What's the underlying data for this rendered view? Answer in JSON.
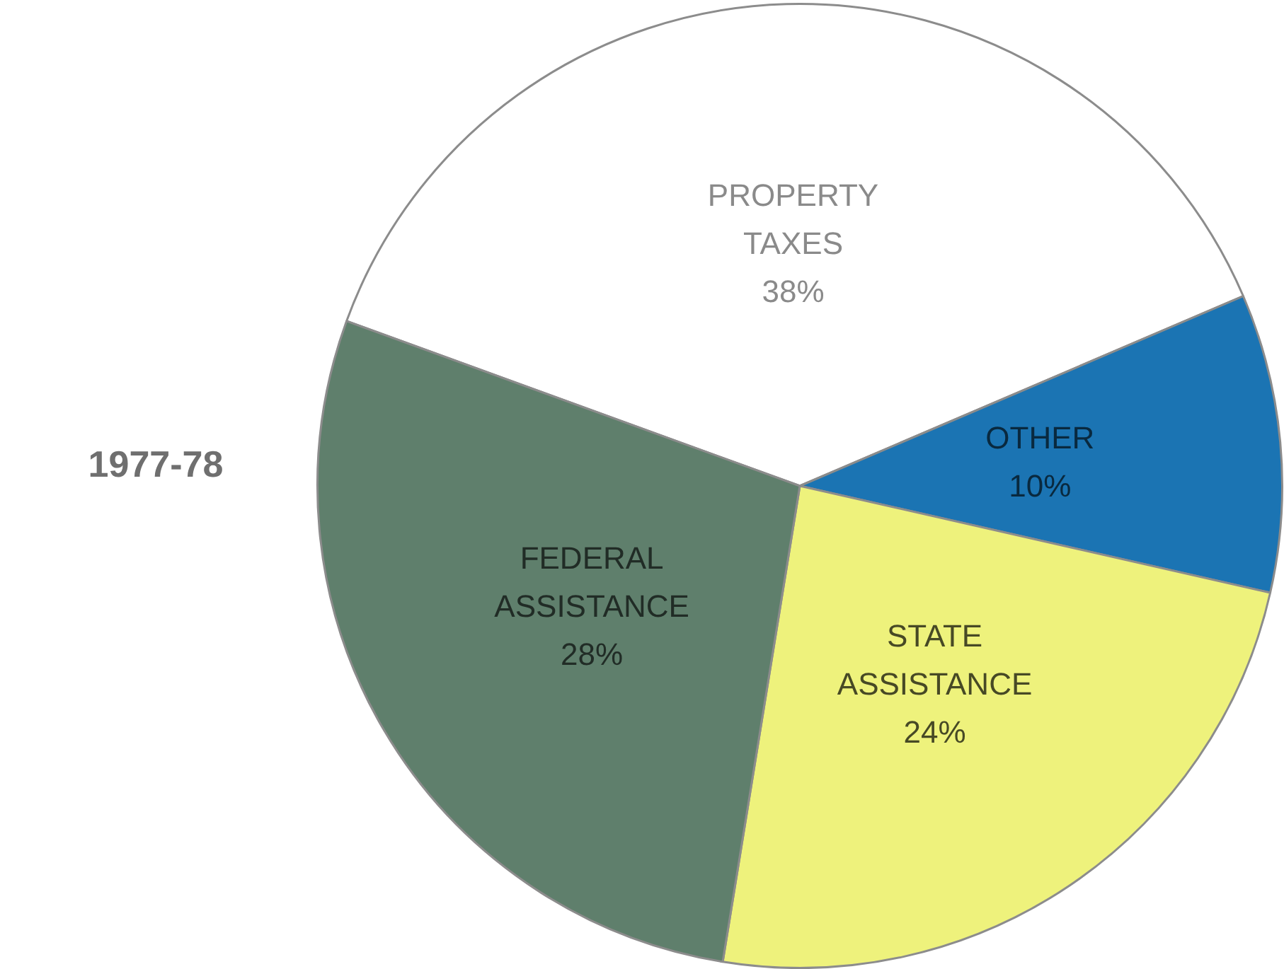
{
  "chart_data": {
    "type": "pie",
    "title": "1977-78",
    "categories": [
      "PROPERTY TAXES",
      "OTHER",
      "STATE ASSISTANCE",
      "FEDERAL ASSISTANCE"
    ],
    "values": [
      38,
      10,
      24,
      28
    ],
    "colors": [
      "#ffffff",
      "#1b74b3",
      "#eef27c",
      "#5f7f6c"
    ],
    "value_labels": [
      "38%",
      "10%",
      "24%",
      "28%"
    ],
    "legend": false
  }
}
